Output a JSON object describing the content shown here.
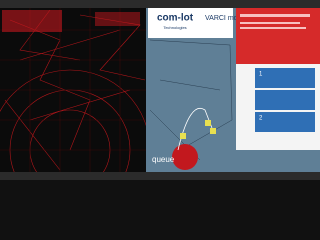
{
  "header": {
    "logo": "com-lot",
    "logo_sub": "Technologies",
    "mode": "VARCI mode"
  },
  "map": {
    "label": "queue"
  },
  "cards": [
    {
      "number": "1"
    },
    {
      "number": "2"
    }
  ]
}
